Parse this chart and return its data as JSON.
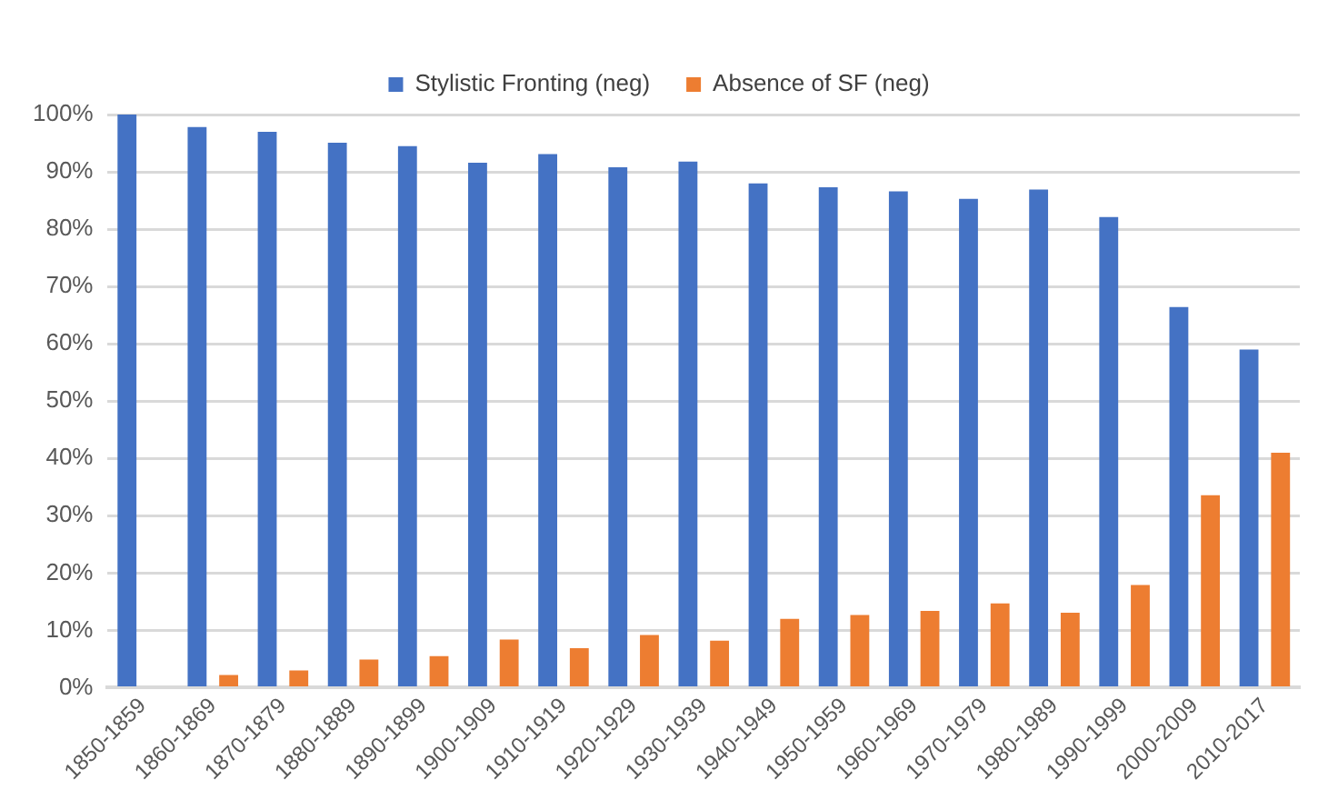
{
  "chart_data": {
    "type": "bar",
    "categories": [
      "1850-1859",
      "1860-1869",
      "1870-1879",
      "1880-1889",
      "1890-1899",
      "1900-1909",
      "1910-1919",
      "1920-1929",
      "1930-1939",
      "1940-1949",
      "1950-1959",
      "1960-1969",
      "1970-1979",
      "1980-1989",
      "1990-1999",
      "2000-2009",
      "2010-2017"
    ],
    "series": [
      {
        "name": "Stylistic Fronting (neg)",
        "color": "#4472c4",
        "values": [
          100,
          97.8,
          97,
          95.1,
          94.5,
          91.6,
          93.1,
          90.8,
          91.8,
          88,
          87.3,
          86.6,
          85.3,
          86.9,
          82.1,
          66.4,
          59
        ]
      },
      {
        "name": "Absence of SF (neg)",
        "color": "#ed7d31",
        "values": [
          0,
          2.2,
          3,
          4.9,
          5.5,
          8.4,
          6.9,
          9.2,
          8.2,
          12,
          12.7,
          13.4,
          14.7,
          13.1,
          17.9,
          33.6,
          41
        ]
      }
    ],
    "ylim": [
      0,
      100
    ],
    "yticks": [
      {
        "value": 0,
        "label": "0%"
      },
      {
        "value": 10,
        "label": "10%"
      },
      {
        "value": 20,
        "label": "20%"
      },
      {
        "value": 30,
        "label": "30%"
      },
      {
        "value": 40,
        "label": "40%"
      },
      {
        "value": 50,
        "label": "50%"
      },
      {
        "value": 60,
        "label": "60%"
      },
      {
        "value": 70,
        "label": "70%"
      },
      {
        "value": 80,
        "label": "80%"
      },
      {
        "value": 90,
        "label": "90%"
      },
      {
        "value": 100,
        "label": "100%"
      }
    ],
    "grid": "y",
    "legend": "top"
  }
}
